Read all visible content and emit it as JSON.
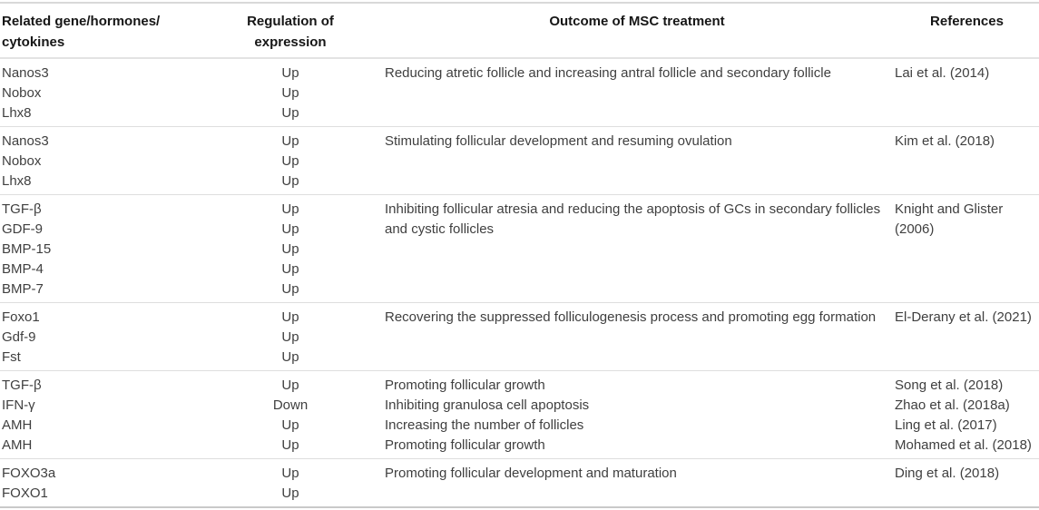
{
  "colors": {
    "background": "#ffffff",
    "text_header": "#161616",
    "text_body": "#3f3f3f",
    "rule_dark": "#c9c9c9",
    "rule_light": "#dedede"
  },
  "table": {
    "header": {
      "col_gene": "Related gene/hormones/\ncytokines",
      "col_regulation": "Regulation of\nexpression",
      "col_outcome": "Outcome of MSC treatment",
      "col_references": "References"
    },
    "groups": [
      {
        "genes": [
          "Nanos3",
          "Nobox",
          "Lhx8"
        ],
        "regulation": [
          "Up",
          "Up",
          "Up"
        ],
        "outcome": "Reducing atretic follicle and increasing antral follicle and secondary follicle",
        "reference": "Lai et al. (2014)"
      },
      {
        "genes": [
          "Nanos3",
          "Nobox",
          "Lhx8"
        ],
        "regulation": [
          "Up",
          "Up",
          "Up"
        ],
        "outcome": "Stimulating follicular development and resuming ovulation",
        "reference": "Kim et al. (2018)"
      },
      {
        "genes": [
          "TGF-β",
          "GDF-9",
          "BMP-15",
          "BMP-4",
          "BMP-7"
        ],
        "regulation": [
          "Up",
          "Up",
          "Up",
          "Up",
          "Up"
        ],
        "outcome": "Inhibiting follicular atresia and reducing the apoptosis of GCs in secondary follicles and cystic follicles",
        "reference": "Knight and Glister (2006)"
      },
      {
        "genes": [
          "Foxo1",
          "Gdf-9",
          "Fst"
        ],
        "regulation": [
          "Up",
          "Up",
          "Up"
        ],
        "outcome": "Recovering the suppressed folliculogenesis process and promoting egg formation",
        "reference": "El-Derany et al. (2021)"
      },
      {
        "genes": [
          "TGF-β",
          "IFN-γ",
          "AMH",
          "AMH"
        ],
        "regulation": [
          "Up",
          "Down",
          "Up",
          "Up"
        ],
        "outcome_lines": [
          "Promoting follicular growth",
          "Inhibiting granulosa cell apoptosis",
          "Increasing the number of follicles",
          "Promoting follicular growth"
        ],
        "reference_lines": [
          "Song et al. (2018)",
          "Zhao et al. (2018a)",
          "Ling et al. (2017)",
          "Mohamed et al. (2018)"
        ]
      },
      {
        "genes": [
          "FOXO3a",
          "FOXO1"
        ],
        "regulation": [
          "Up",
          "Up"
        ],
        "outcome": "Promoting follicular development and maturation",
        "reference": "Ding et al. (2018)"
      }
    ]
  }
}
